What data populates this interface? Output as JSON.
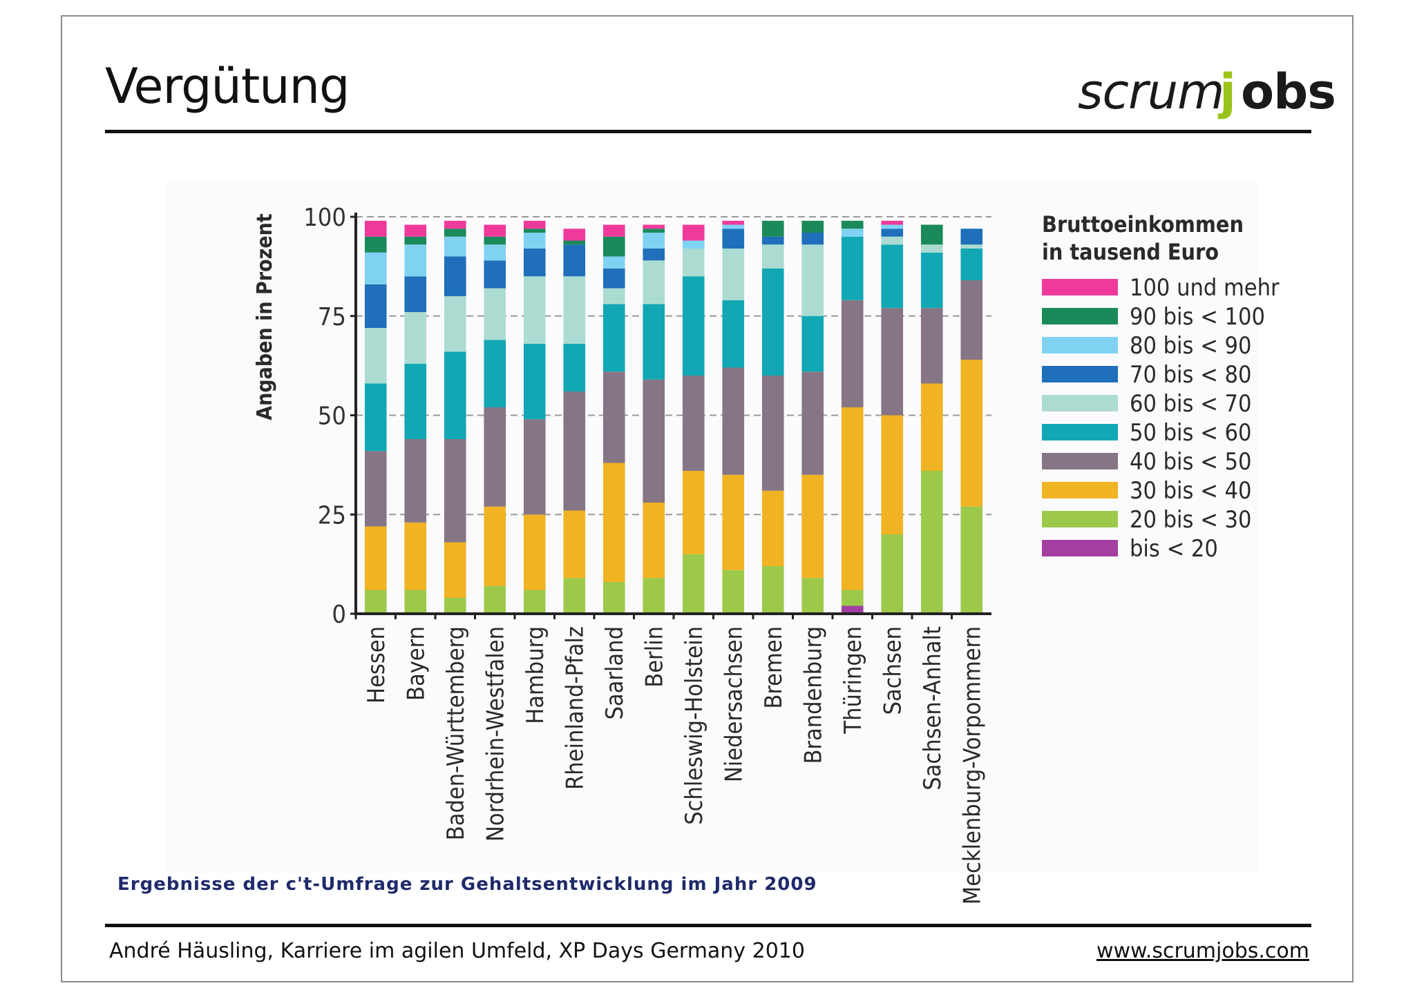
{
  "slide": {
    "title": "Vergütung",
    "logo": {
      "part1": "scrum",
      "part2": "j",
      "part3": "obs"
    },
    "caption": "Ergebnisse der c't-Umfrage zur Gehaltsentwicklung im Jahr 2009",
    "footer_left": "André Häusling, Karriere im agilen Umfeld, XP Days Germany 2010",
    "footer_right": "www.scrumjobs.com"
  },
  "chart_data": {
    "type": "bar",
    "stacked": true,
    "ylabel": "Angaben in Prozent",
    "ylim": [
      0,
      100
    ],
    "yticks": [
      0,
      25,
      50,
      75,
      100
    ],
    "grid": true,
    "legend_title": "Bruttoeinkommen in tausend Euro",
    "legend_title_lines": [
      "Bruttoeinkommen",
      "in tausend Euro"
    ],
    "legend_position": "right",
    "categories": [
      "Hessen",
      "Bayern",
      "Baden-Württemberg",
      "Nordrhein-Westfalen",
      "Hamburg",
      "Rheinland-Pfalz",
      "Saarland",
      "Berlin",
      "Schleswig-Holstein",
      "Niedersachsen",
      "Bremen",
      "Brandenburg",
      "Thüringen",
      "Sachsen",
      "Sachsen-Anhalt",
      "Mecklenburg-Vorpommern"
    ],
    "series": [
      {
        "name": "bis < 20",
        "color": "#a23fa0",
        "values": [
          0,
          0,
          0,
          0,
          0,
          0,
          0,
          0,
          0,
          0,
          0,
          0,
          2,
          0,
          0,
          0
        ]
      },
      {
        "name": "20 bis < 30",
        "color": "#9dc94b",
        "values": [
          6,
          6,
          4,
          7,
          6,
          9,
          8,
          9,
          15,
          11,
          12,
          9,
          4,
          20,
          36,
          27
        ]
      },
      {
        "name": "30 bis < 40",
        "color": "#f0b323",
        "values": [
          16,
          17,
          14,
          20,
          19,
          17,
          30,
          19,
          21,
          24,
          19,
          26,
          46,
          30,
          22,
          37
        ]
      },
      {
        "name": "40 bis < 50",
        "color": "#867584",
        "values": [
          19,
          21,
          26,
          25,
          24,
          30,
          23,
          31,
          24,
          27,
          29,
          26,
          27,
          27,
          19,
          20
        ]
      },
      {
        "name": "50 bis < 60",
        "color": "#12a7b4",
        "values": [
          17,
          19,
          22,
          17,
          19,
          12,
          17,
          19,
          25,
          17,
          27,
          14,
          16,
          16,
          14,
          8
        ]
      },
      {
        "name": "60 bis < 70",
        "color": "#acdcd1",
        "values": [
          14,
          13,
          14,
          13,
          17,
          17,
          4,
          11,
          7,
          13,
          6,
          18,
          0,
          2,
          2,
          1
        ]
      },
      {
        "name": "70 bis < 80",
        "color": "#1f6fba",
        "values": [
          11,
          9,
          10,
          7,
          7,
          8,
          5,
          3,
          0,
          5,
          2,
          3,
          0,
          2,
          0,
          4
        ]
      },
      {
        "name": "80 bis < 90",
        "color": "#80d2f3",
        "values": [
          8,
          8,
          5,
          4,
          4,
          0,
          3,
          4,
          2,
          1,
          0,
          0,
          2,
          1,
          0,
          0
        ]
      },
      {
        "name": "90 bis < 100",
        "color": "#1a8a5a",
        "values": [
          4,
          2,
          2,
          2,
          1,
          1,
          5,
          1,
          0,
          0,
          4,
          3,
          2,
          0,
          5,
          0
        ]
      },
      {
        "name": "100 und mehr",
        "color": "#ef3a9c",
        "values": [
          4,
          3,
          2,
          3,
          2,
          3,
          3,
          1,
          4,
          1,
          0,
          0,
          0,
          1,
          0,
          0
        ]
      }
    ]
  }
}
